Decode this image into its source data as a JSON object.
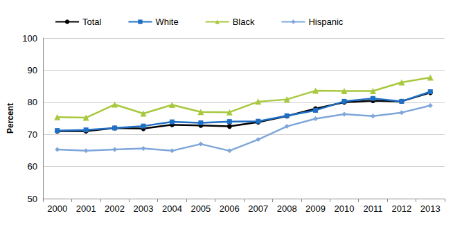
{
  "chart_data": {
    "type": "line",
    "y_label": "Percent",
    "categories": [
      "2000",
      "2001",
      "2002",
      "2003",
      "2004",
      "2005",
      "2006",
      "2007",
      "2008",
      "2009",
      "2010",
      "2011",
      "2012",
      "2013"
    ],
    "series": [
      {
        "name": "Total",
        "color": "#000000",
        "marker": "circle",
        "line_style": "solid",
        "values": [
          71,
          71,
          72,
          71.8,
          73,
          72.8,
          72.5,
          73.8,
          75.7,
          78,
          80,
          80.5,
          80.3,
          83
        ]
      },
      {
        "name": "White",
        "color": "#1f6fc4",
        "marker": "square",
        "line_style": "solid",
        "values": [
          71.2,
          71.4,
          72,
          72.6,
          73.9,
          73.6,
          74,
          74.1,
          75.8,
          77.5,
          80.3,
          81.2,
          80.3,
          83.3
        ]
      },
      {
        "name": "Black",
        "color": "#a8c83e",
        "marker": "triangle",
        "line_style": "solid",
        "values": [
          75.4,
          75.2,
          79.3,
          76.5,
          79.2,
          77,
          76.9,
          80.2,
          80.9,
          83.6,
          83.5,
          83.5,
          86.2,
          87.7
        ]
      },
      {
        "name": "Hispanic",
        "color": "#7ea6da",
        "marker": "diamond",
        "line_style": "solid",
        "values": [
          65.3,
          64.9,
          65.3,
          65.6,
          64.9,
          67,
          64.9,
          68.4,
          72.5,
          74.9,
          76.3,
          75.7,
          76.8,
          79
        ]
      }
    ],
    "ylim": [
      50,
      100
    ],
    "yticks": [
      50,
      60,
      70,
      80,
      90,
      100
    ],
    "grid": true,
    "legend": "top-left"
  }
}
